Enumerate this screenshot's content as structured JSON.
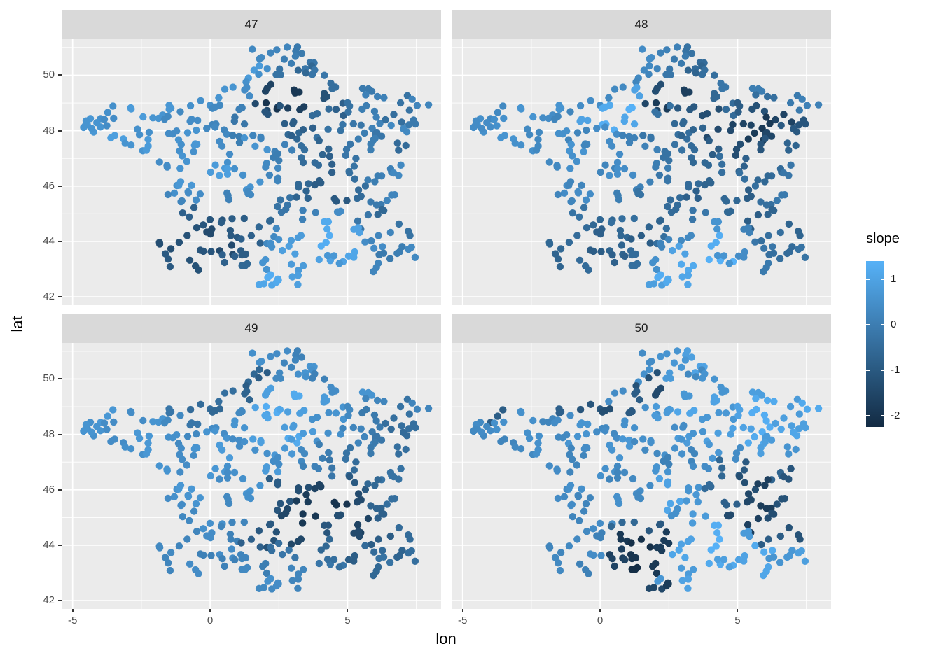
{
  "chart_data": {
    "type": "scatter",
    "title": "",
    "xlabel": "lon",
    "ylabel": "lat",
    "facet_labels": [
      "47",
      "48",
      "49",
      "50"
    ],
    "xlim": [
      -5.4,
      8.4
    ],
    "ylim": [
      41.7,
      51.3
    ],
    "x_ticks": [
      -5,
      0,
      5
    ],
    "y_ticks": [
      42,
      44,
      46,
      48,
      50
    ],
    "x_minor_ticks": [
      -2.5,
      2.5,
      7.5
    ],
    "y_minor_ticks": [
      43,
      45,
      47,
      49,
      51
    ],
    "grid": true,
    "legend_position": "right",
    "color_scale": {
      "title": "slope",
      "low_color": "#132B43",
      "high_color": "#56B1F7",
      "domain": [
        -2.25,
        1.4
      ],
      "legend_ticks": [
        1,
        0,
        -1,
        -2
      ]
    },
    "stations": [
      [
        2.4,
        50.9
      ],
      [
        3.1,
        50.7
      ],
      [
        2.0,
        50.6
      ],
      [
        2.9,
        50.5
      ],
      [
        3.6,
        50.4
      ],
      [
        1.6,
        50.2
      ],
      [
        2.5,
        50.1
      ],
      [
        3.3,
        50.0
      ],
      [
        4.0,
        50.0
      ],
      [
        1.8,
        49.9
      ],
      [
        0.3,
        49.5
      ],
      [
        1.1,
        49.4
      ],
      [
        2.2,
        49.5
      ],
      [
        3.0,
        49.3
      ],
      [
        3.9,
        49.4
      ],
      [
        4.7,
        49.6
      ],
      [
        5.4,
        49.5
      ],
      [
        6.2,
        49.3
      ],
      [
        7.0,
        49.1
      ],
      [
        -0.5,
        49.2
      ],
      [
        -1.4,
        49.0
      ],
      [
        0.2,
        49.0
      ],
      [
        1.0,
        48.9
      ],
      [
        2.0,
        48.9
      ],
      [
        2.7,
        48.8
      ],
      [
        3.5,
        48.8
      ],
      [
        4.3,
        48.9
      ],
      [
        5.1,
        48.8
      ],
      [
        6.0,
        48.7
      ],
      [
        6.9,
        48.6
      ],
      [
        7.6,
        48.8
      ],
      [
        -4.5,
        48.4
      ],
      [
        -3.8,
        48.6
      ],
      [
        -3.0,
        48.6
      ],
      [
        -2.2,
        48.6
      ],
      [
        -1.3,
        48.4
      ],
      [
        -0.4,
        48.4
      ],
      [
        0.5,
        48.4
      ],
      [
        1.4,
        48.4
      ],
      [
        2.3,
        48.4
      ],
      [
        3.2,
        48.4
      ],
      [
        4.1,
        48.5
      ],
      [
        5.0,
        48.4
      ],
      [
        5.9,
        48.3
      ],
      [
        7.2,
        48.3
      ],
      [
        -4.3,
        48.0
      ],
      [
        -3.5,
        47.9
      ],
      [
        -2.7,
        47.9
      ],
      [
        -1.8,
        48.0
      ],
      [
        -0.9,
        48.0
      ],
      [
        0.0,
        48.0
      ],
      [
        0.9,
        47.9
      ],
      [
        1.8,
        47.9
      ],
      [
        2.7,
        48.0
      ],
      [
        3.6,
        48.0
      ],
      [
        4.5,
        47.9
      ],
      [
        5.4,
        47.9
      ],
      [
        6.3,
        47.9
      ],
      [
        7.3,
        47.9
      ],
      [
        -2.9,
        47.4
      ],
      [
        -2.0,
        47.3
      ],
      [
        -1.1,
        47.3
      ],
      [
        -0.2,
        47.4
      ],
      [
        0.7,
        47.4
      ],
      [
        1.6,
        47.3
      ],
      [
        2.5,
        47.4
      ],
      [
        3.4,
        47.4
      ],
      [
        4.3,
        47.3
      ],
      [
        5.2,
        47.3
      ],
      [
        6.1,
        47.4
      ],
      [
        7.0,
        47.4
      ],
      [
        -1.8,
        46.8
      ],
      [
        -0.9,
        46.7
      ],
      [
        0.0,
        46.8
      ],
      [
        0.9,
        46.8
      ],
      [
        1.8,
        46.7
      ],
      [
        2.7,
        46.8
      ],
      [
        3.6,
        46.8
      ],
      [
        4.5,
        46.7
      ],
      [
        5.4,
        46.8
      ],
      [
        6.3,
        46.7
      ],
      [
        -1.3,
        46.2
      ],
      [
        -0.4,
        46.1
      ],
      [
        0.5,
        46.2
      ],
      [
        1.4,
        46.1
      ],
      [
        2.3,
        46.2
      ],
      [
        3.2,
        46.2
      ],
      [
        4.1,
        46.1
      ],
      [
        5.0,
        46.2
      ],
      [
        5.9,
        46.2
      ],
      [
        6.7,
        46.3
      ],
      [
        -1.1,
        45.6
      ],
      [
        -0.2,
        45.6
      ],
      [
        0.7,
        45.5
      ],
      [
        1.6,
        45.6
      ],
      [
        2.5,
        45.5
      ],
      [
        3.4,
        45.6
      ],
      [
        4.3,
        45.5
      ],
      [
        5.2,
        45.6
      ],
      [
        6.1,
        45.5
      ],
      [
        6.9,
        45.7
      ],
      [
        -0.8,
        45.0
      ],
      [
        0.1,
        44.9
      ],
      [
        1.0,
        45.0
      ],
      [
        1.9,
        44.9
      ],
      [
        2.8,
        45.0
      ],
      [
        3.7,
        44.9
      ],
      [
        4.6,
        45.0
      ],
      [
        5.5,
        44.9
      ],
      [
        6.4,
        45.0
      ],
      [
        -1.0,
        44.4
      ],
      [
        -0.1,
        44.4
      ],
      [
        0.8,
        44.3
      ],
      [
        1.7,
        44.4
      ],
      [
        2.6,
        44.3
      ],
      [
        3.5,
        44.4
      ],
      [
        4.4,
        44.3
      ],
      [
        5.3,
        44.4
      ],
      [
        6.2,
        44.3
      ],
      [
        7.0,
        44.2
      ],
      [
        -1.2,
        43.7
      ],
      [
        -0.3,
        43.7
      ],
      [
        0.6,
        43.8
      ],
      [
        1.5,
        43.7
      ],
      [
        2.4,
        43.8
      ],
      [
        3.3,
        43.7
      ],
      [
        4.2,
        43.8
      ],
      [
        5.1,
        43.7
      ],
      [
        6.0,
        43.8
      ],
      [
        6.9,
        43.7
      ],
      [
        7.5,
        43.8
      ],
      [
        -1.4,
        43.3
      ],
      [
        -0.5,
        43.3
      ],
      [
        0.4,
        43.2
      ],
      [
        1.3,
        43.2
      ],
      [
        2.2,
        43.2
      ],
      [
        3.1,
        43.3
      ],
      [
        4.1,
        43.4
      ],
      [
        5.0,
        43.3
      ],
      [
        5.9,
        43.2
      ],
      [
        6.7,
        43.3
      ],
      [
        1.9,
        42.6
      ],
      [
        2.6,
        42.5
      ],
      [
        2.9,
        42.7
      ],
      [
        2.2,
        42.4
      ],
      [
        -4.6,
        48.2
      ],
      [
        -4.0,
        48.3
      ]
    ],
    "slope_by_facet": {
      "47": [
        0.2,
        -0.1,
        0.3,
        0,
        -0.2,
        0.8,
        -0.3,
        -0.6,
        -0.2,
        0.5,
        0.6,
        0.4,
        -1.6,
        -1.9,
        -1.2,
        -0.4,
        -0.1,
        0.1,
        -0.3,
        0.5,
        0.7,
        0.3,
        0.1,
        -1.4,
        -2,
        -1.7,
        -0.8,
        -0.3,
        0,
        -0.4,
        0.2,
        0.7,
        0.5,
        0.8,
        0.6,
        0.3,
        0.4,
        0.2,
        -0.2,
        -1.1,
        -0.9,
        -0.5,
        -0.2,
        0.1,
        -0.1,
        0.6,
        0.9,
        0.5,
        0.4,
        0.6,
        0.3,
        0,
        0.2,
        -0.6,
        -0.8,
        -0.3,
        0,
        -0.2,
        0.3,
        0.6,
        0.8,
        0.5,
        0.7,
        0.4,
        0.6,
        0.1,
        -0.4,
        -0.7,
        -0.2,
        0,
        -0.5,
        0.4,
        0.6,
        0.8,
        0.5,
        0.3,
        0,
        -0.5,
        -0.8,
        -0.3,
        0.1,
        0.5,
        0.7,
        0.9,
        0.6,
        0.2,
        -0.6,
        -0.9,
        -0.4,
        0,
        0.3,
        0.2,
        0.4,
        0.1,
        0.3,
        -0.3,
        -0.7,
        -1,
        -0.5,
        -0.1,
        0.2,
        -0.8,
        -1.1,
        -0.9,
        -0.6,
        -0.2,
        0.1,
        0.4,
        -0.2,
        -0.6,
        -1.2,
        -1.4,
        -1,
        -0.8,
        0.3,
        0.8,
        1.2,
        1,
        0.2,
        -0.3,
        -1.3,
        -1.1,
        -1.4,
        -0.9,
        0.5,
        0.9,
        1.3,
        1.1,
        0.4,
        0,
        0.3,
        -1,
        -1.2,
        -0.8,
        -0.6,
        0.6,
        0.8,
        1,
        0.7,
        0.2,
        -0.1,
        1.1,
        1.3,
        0.9,
        1.2,
        0.6,
        0.4
      ],
      "48": [
        0.1,
        -0.3,
        0.4,
        -0.1,
        -0.5,
        0.3,
        -0.2,
        -0.7,
        -0.4,
        0.2,
        0.3,
        1,
        -1.3,
        -1.7,
        -0.6,
        -0.2,
        0,
        -0.4,
        -0.1,
        0.4,
        0.6,
        1.2,
        1.4,
        -1.5,
        -1.8,
        -1,
        -0.5,
        -0.9,
        -1.2,
        -1.6,
        0.1,
        0.5,
        0.3,
        0.6,
        0.4,
        0.2,
        1,
        1.3,
        1.1,
        -0.3,
        -0.6,
        -1.3,
        -1.6,
        -1.9,
        -1.1,
        0.4,
        0.6,
        0.3,
        0.5,
        0.2,
        0.4,
        0.1,
        -0.2,
        -0.4,
        -0.7,
        -1.4,
        -1.8,
        -1.5,
        -1,
        0.5,
        0.3,
        0.6,
        0.2,
        0.4,
        0.1,
        -0.3,
        -0.5,
        -0.9,
        -1.3,
        -1.1,
        -0.7,
        0.3,
        0.5,
        0.2,
        0.4,
        0,
        -0.3,
        -0.6,
        -0.4,
        -0.8,
        -0.5,
        0.4,
        0.2,
        0.5,
        0.1,
        -0.2,
        -0.5,
        -0.7,
        -0.4,
        -0.6,
        -0.2,
        0.2,
        0.4,
        0,
        -0.3,
        -0.5,
        -0.8,
        -0.6,
        -0.9,
        -0.4,
        -0.1,
        -0.3,
        -0.6,
        -0.4,
        -0.7,
        -0.5,
        -0.2,
        -0.6,
        -0.9,
        -0.7,
        -0.5,
        -0.8,
        -0.6,
        -0.9,
        -0.4,
        0.3,
        0.6,
        0.1,
        -0.4,
        -0.7,
        -0.6,
        -0.9,
        -0.7,
        -0.5,
        0.2,
        1,
        1.3,
        0.4,
        -0.2,
        -0.5,
        -0.3,
        -0.7,
        -0.5,
        -0.8,
        -0.4,
        0.5,
        1.2,
        1.4,
        0.6,
        -0.1,
        -0.4,
        0.9,
        1.3,
        1.1,
        1.2,
        0.4,
        0.5
      ],
      "49": [
        0.4,
        0.1,
        0.5,
        0.2,
        0.6,
        -0.6,
        0.3,
        0.5,
        0.1,
        -0.9,
        -0.4,
        -0.7,
        0.9,
        1.2,
        0.8,
        0.4,
        0.6,
        0.2,
        -0.3,
        -0.5,
        -0.2,
        -0.6,
        0.3,
        1,
        1.3,
        0.9,
        0.6,
        0.3,
        -0.1,
        -0.4,
        0.2,
        0.5,
        0.7,
        0.4,
        0.6,
        0.3,
        -0.2,
        0.4,
        0.6,
        1.1,
        0.8,
        0.5,
        0.2,
        -0.1,
        -0.4,
        0.6,
        0.4,
        0.7,
        0.5,
        0.3,
        0.6,
        0.4,
        0.9,
        1.2,
        0.8,
        0.5,
        0.2,
        -0.2,
        -0.5,
        0.5,
        0.7,
        0.4,
        0.6,
        0.8,
        0.5,
        0.7,
        0.3,
        0,
        -0.3,
        -0.1,
        -0.4,
        0.6,
        0.4,
        0.7,
        0.5,
        0.8,
        0.4,
        0.1,
        -0.2,
        -0.5,
        -0.3,
        0.5,
        0.7,
        0.4,
        0.6,
        -0.9,
        -1.3,
        -1.6,
        -1,
        -0.6,
        -0.3,
        0.4,
        0.6,
        0.3,
        0.5,
        -1.1,
        -1.8,
        -2,
        -1.4,
        -0.7,
        -0.4,
        0.3,
        0.5,
        0.2,
        -1,
        -1.5,
        -1.9,
        -1.3,
        -1.6,
        -0.8,
        0.2,
        0.4,
        0.1,
        -0.8,
        -1.2,
        -1.5,
        -1.1,
        -1.4,
        -0.9,
        -0.5,
        0.3,
        0.1,
        0.4,
        0.2,
        -0.4,
        -0.2,
        -0.6,
        -0.9,
        -0.5,
        -0.7,
        -0.4,
        0.2,
        0.4,
        0.1,
        0.3,
        0,
        0.2,
        -0.2,
        -0.4,
        -0.6,
        -0.3,
        0.3,
        0.5,
        0.2,
        0.4,
        0.6,
        0.4
      ],
      "50": [
        0.6,
        0.9,
        0.4,
        0.7,
        1,
        0.5,
        0.8,
        0.3,
        0.6,
        -1.2,
        0.4,
        -0.9,
        -1.4,
        0.7,
        1,
        0.6,
        0.9,
        1.2,
        0.8,
        -1.1,
        -0.8,
        -1.3,
        -1,
        0.5,
        0.8,
        1.1,
        0.7,
        1,
        1.3,
        0.9,
        1.2,
        0.3,
        -0.9,
        0.5,
        0.2,
        0.4,
        0.6,
        0.3,
        0.5,
        0.8,
        0.4,
        0.7,
        1,
        1.3,
        0.9,
        0.4,
        0.2,
        0.5,
        0.3,
        0.6,
        0.4,
        0.7,
        0.5,
        0.8,
        0.6,
        0.9,
        1.2,
        0.8,
        1.1,
        0.3,
        0.5,
        0.2,
        0.4,
        0.6,
        0.3,
        0.5,
        0.2,
        0.7,
        0.4,
        0.9,
        0.6,
        0.4,
        0.2,
        0.5,
        0.3,
        0.6,
        0.1,
        0.4,
        -0.6,
        -1,
        -0.7,
        0.3,
        0.5,
        0.2,
        0.4,
        1,
        0.6,
        -0.5,
        -1.3,
        -1.7,
        -1.1,
        0.4,
        0.2,
        0.5,
        0.3,
        1.1,
        0.7,
        -0.8,
        -1.5,
        -1.8,
        -1.2,
        0.2,
        0.4,
        -0.6,
        -1,
        0.5,
        0.8,
        -1.4,
        -1.7,
        -1.3,
        0.3,
        0.1,
        -1.9,
        -2.1,
        -1.8,
        1,
        1.3,
        0.8,
        -0.9,
        -1.2,
        0.2,
        0.4,
        -1.7,
        -2,
        -1.8,
        1.1,
        1.4,
        1,
        1.2,
        0.7,
        0.9,
        0.3,
        0.1,
        -1.6,
        -2.2,
        -1.9,
        0.8,
        1.2,
        0.9,
        1.1,
        0.6,
        -1.5,
        0.7,
        1,
        -1.8,
        0.3,
        0.5
      ]
    }
  }
}
